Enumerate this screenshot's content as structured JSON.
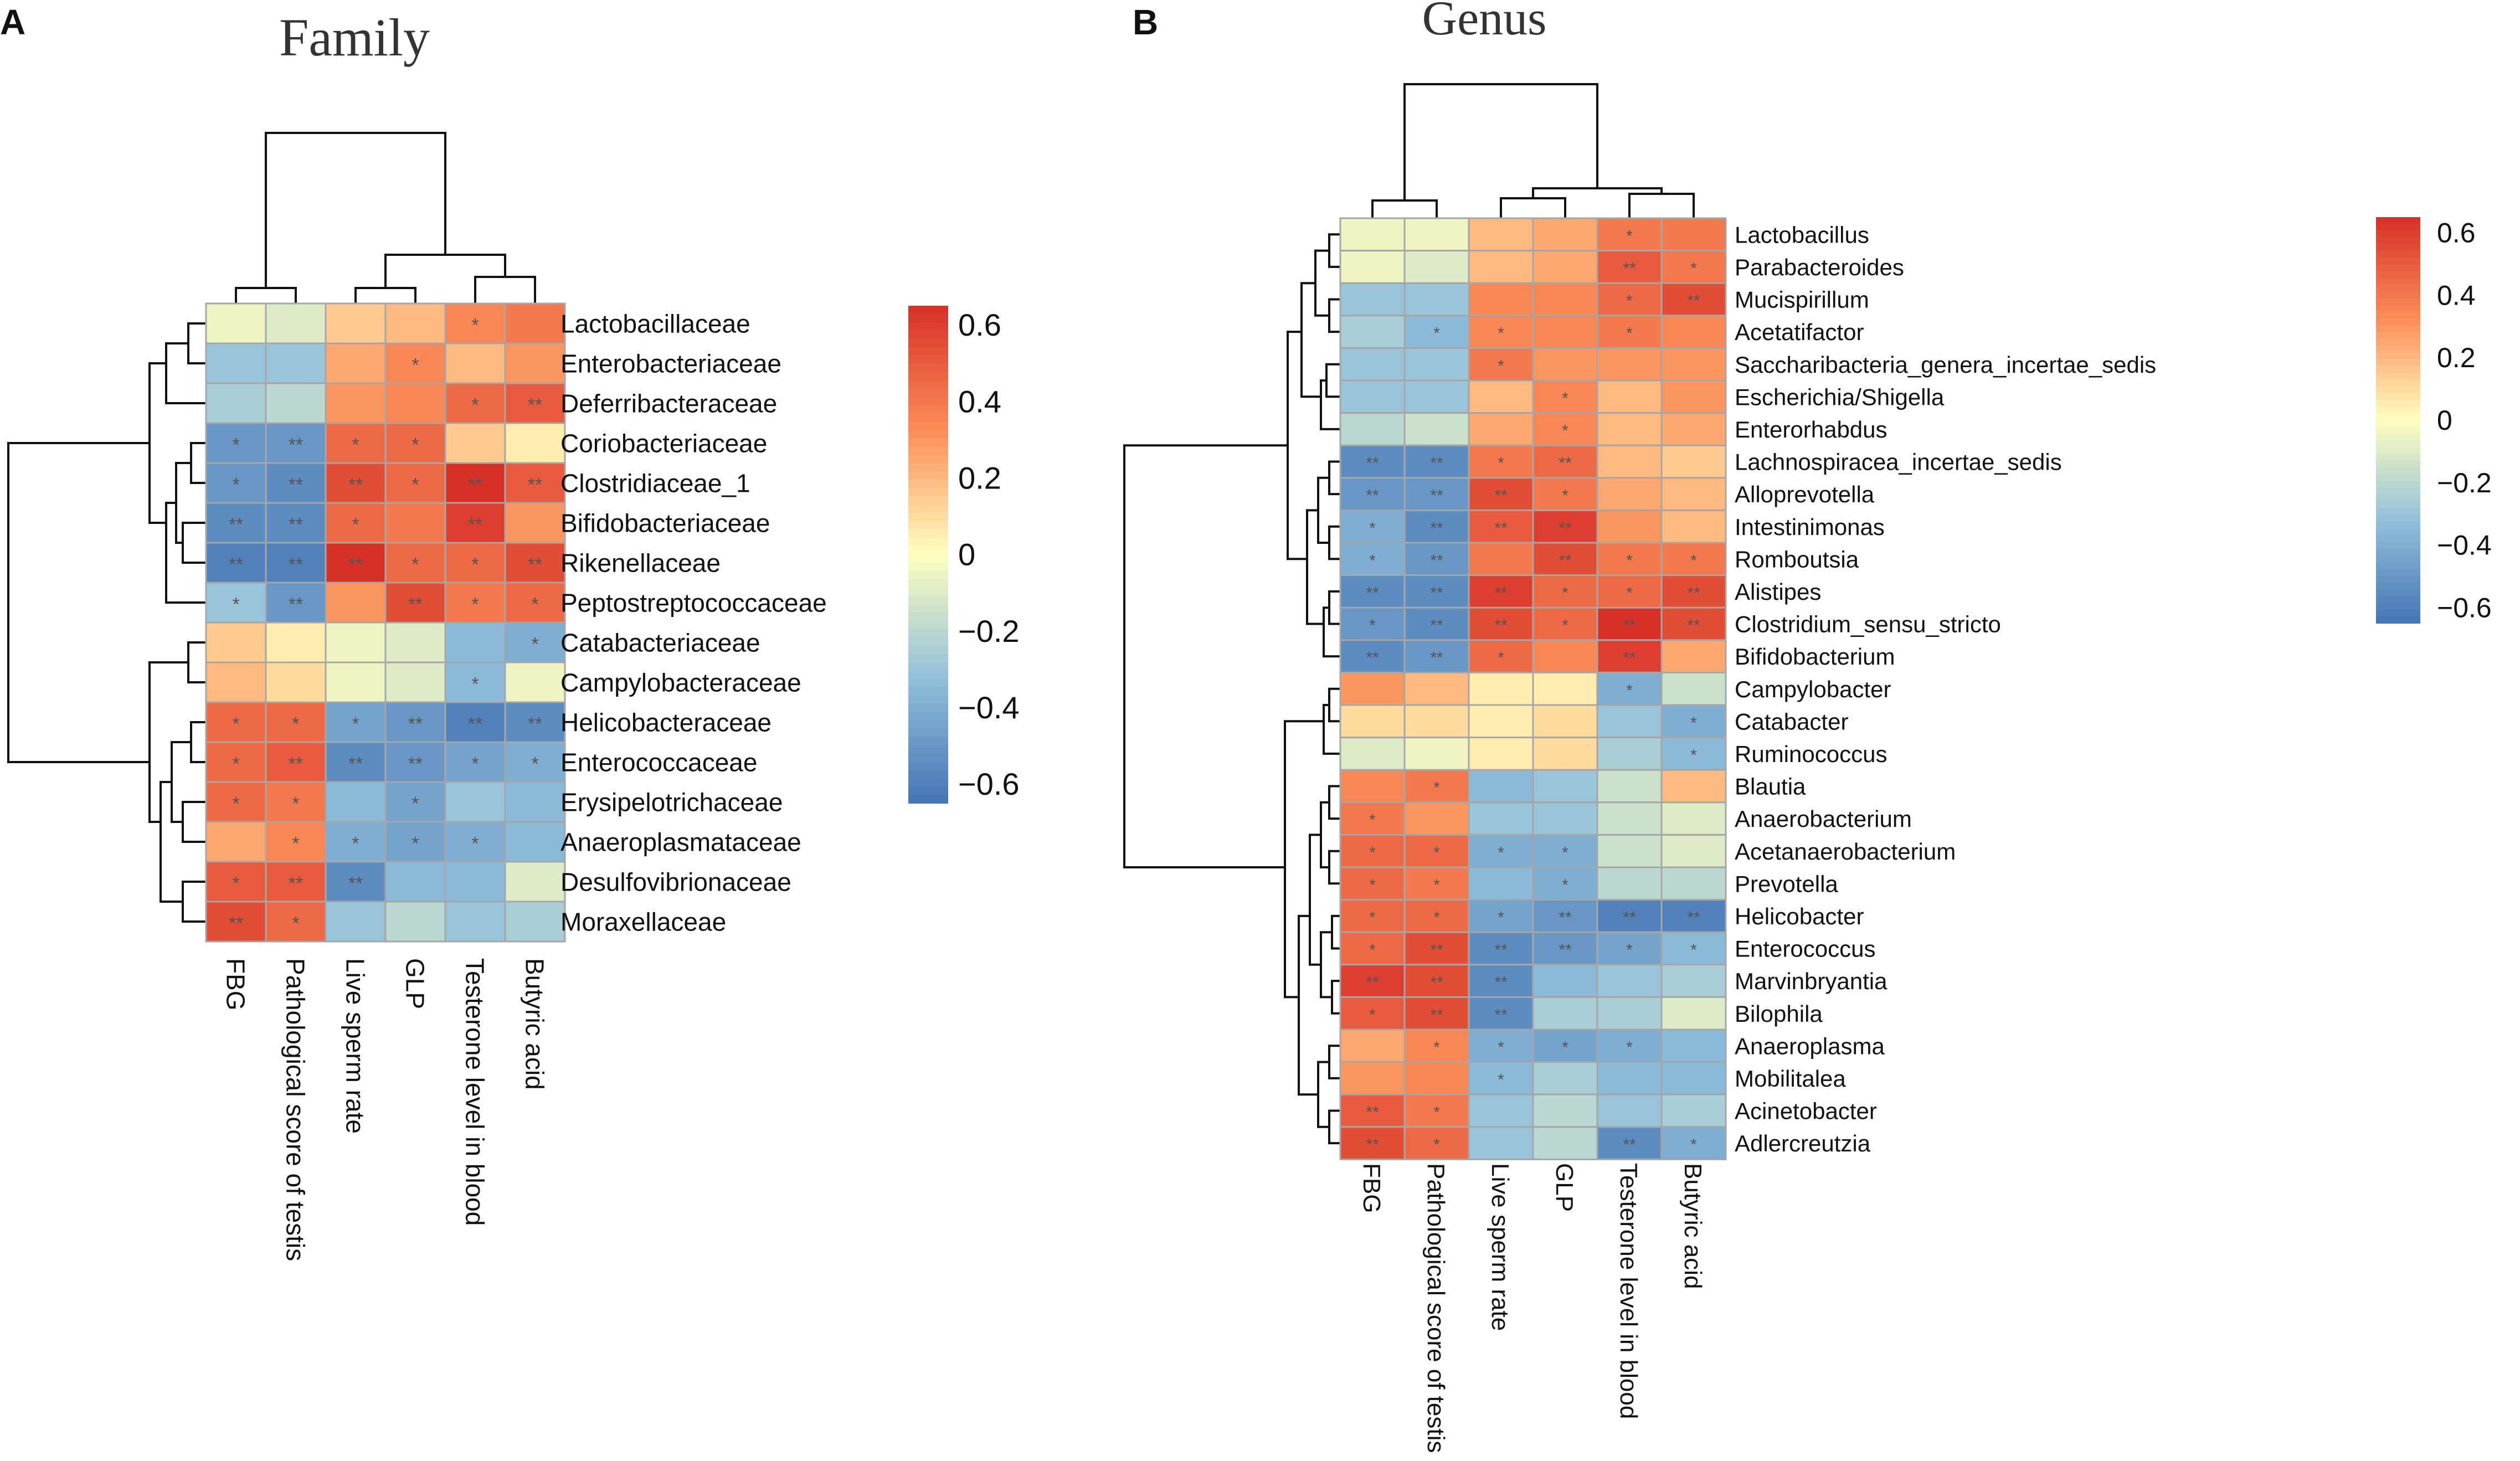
{
  "figure": {
    "panel_a_label": "A",
    "panel_b_label": "B"
  },
  "palette": {
    "low": "#4575b4",
    "mid_low": "#91bfdb",
    "mid": "#ffffbf",
    "mid_high": "#fc8d59",
    "high": "#d73027"
  },
  "chart_data": [
    {
      "type": "heatmap",
      "panel": "A",
      "title": "Family",
      "columns": [
        "FBG",
        "Pathological score of testis",
        "Live sperm rate",
        "GLP",
        "Testerone level in blood",
        "Butyric acid"
      ],
      "rows": [
        "Lactobacillaceae",
        "Enterobacteriaceae",
        "Deferribacteraceae",
        "Coriobacteriaceae",
        "Clostridiaceae_1",
        "Bifidobacteriaceae",
        "Rikenellaceae",
        "Peptostreptococcaceae",
        "Catabacteriaceae",
        "Campylobacteraceae",
        "Helicobacteraceae",
        "Enterococcaceae",
        "Erysipelotrichaceae",
        "Anaeroplasmataceae",
        "Desulfovibrionaceae",
        "Moraxellaceae"
      ],
      "values": [
        [
          -0.05,
          -0.1,
          0.15,
          0.2,
          0.35,
          0.4
        ],
        [
          -0.3,
          -0.3,
          0.25,
          0.35,
          0.2,
          0.3
        ],
        [
          -0.25,
          -0.2,
          0.3,
          0.35,
          0.45,
          0.5
        ],
        [
          -0.5,
          -0.5,
          0.45,
          0.45,
          0.15,
          0.05
        ],
        [
          -0.5,
          -0.55,
          0.55,
          0.45,
          0.65,
          0.5
        ],
        [
          -0.55,
          -0.55,
          0.45,
          0.4,
          0.6,
          0.3
        ],
        [
          -0.6,
          -0.6,
          0.65,
          0.45,
          0.45,
          0.55
        ],
        [
          -0.3,
          -0.5,
          0.3,
          0.55,
          0.4,
          0.45
        ],
        [
          0.15,
          0.05,
          -0.05,
          -0.1,
          -0.35,
          -0.4
        ],
        [
          0.2,
          0.1,
          -0.05,
          -0.1,
          -0.35,
          -0.05
        ],
        [
          0.45,
          0.45,
          -0.45,
          -0.5,
          -0.6,
          -0.55
        ],
        [
          0.45,
          0.5,
          -0.55,
          -0.5,
          -0.45,
          -0.4
        ],
        [
          0.45,
          0.4,
          -0.35,
          -0.45,
          -0.3,
          -0.35
        ],
        [
          0.25,
          0.35,
          -0.4,
          -0.45,
          -0.4,
          -0.35
        ],
        [
          0.5,
          0.5,
          -0.55,
          -0.35,
          -0.35,
          -0.1
        ],
        [
          0.55,
          0.45,
          -0.3,
          -0.2,
          -0.3,
          -0.25
        ]
      ],
      "significance": [
        [
          "",
          "",
          "",
          "",
          "*",
          ""
        ],
        [
          "",
          "",
          "",
          "*",
          "",
          ""
        ],
        [
          "",
          "",
          "",
          "",
          "*",
          "**"
        ],
        [
          "*",
          "**",
          "*",
          "*",
          "",
          ""
        ],
        [
          "*",
          "**",
          "**",
          "*",
          "**",
          "**"
        ],
        [
          "**",
          "**",
          "*",
          "",
          "**",
          ""
        ],
        [
          "**",
          "**",
          "**",
          "*",
          "*",
          "**"
        ],
        [
          "*",
          "**",
          "",
          "**",
          "*",
          "*"
        ],
        [
          "",
          "",
          "",
          "",
          "",
          "*"
        ],
        [
          "",
          "",
          "",
          "",
          "*",
          ""
        ],
        [
          "*",
          "*",
          "*",
          "**",
          "**",
          "**"
        ],
        [
          "*",
          "**",
          "**",
          "**",
          "*",
          "*"
        ],
        [
          "*",
          "*",
          "",
          "*",
          "",
          ""
        ],
        [
          "",
          "*",
          "*",
          "*",
          "*",
          ""
        ],
        [
          "*",
          "**",
          "**",
          "",
          "",
          ""
        ],
        [
          "**",
          "*",
          "",
          "",
          "",
          ""
        ]
      ],
      "legend_ticks": [
        "0.6",
        "0.4",
        "0.2",
        "0",
        "−0.2",
        "−0.4",
        "−0.6"
      ],
      "legend_range": [
        -0.65,
        0.65
      ],
      "legend_tick_values": [
        0.6,
        0.4,
        0.2,
        0,
        -0.2,
        -0.4,
        -0.6
      ]
    },
    {
      "type": "heatmap",
      "panel": "B",
      "title": "Genus",
      "columns": [
        "FBG",
        "Pathological score of testis",
        "Live sperm rate",
        "GLP",
        "Testerone level in blood",
        "Butyric acid"
      ],
      "rows": [
        "Lactobacillus",
        "Parabacteroides",
        "Mucispirillum",
        "Acetatifactor",
        "Saccharibacteria_genera_incertae_sedis",
        "Escherichia/Shigella",
        "Enterorhabdus",
        "Lachnospiracea_incertae_sedis",
        "Alloprevotella",
        "Intestinimonas",
        "Romboutsia",
        "Alistipes",
        "Clostridium_sensu_stricto",
        "Bifidobacterium",
        "Campylobacter",
        "Catabacter",
        "Ruminococcus",
        "Blautia",
        "Anaerobacterium",
        "Acetanaerobacterium",
        "Prevotella",
        "Helicobacter",
        "Enterococcus",
        "Marvinbryantia",
        "Bilophila",
        "Anaeroplasma",
        "Mobilitalea",
        "Acinetobacter",
        "Adlercreutzia"
      ],
      "values": [
        [
          -0.05,
          -0.05,
          0.2,
          0.25,
          0.4,
          0.4
        ],
        [
          -0.05,
          -0.1,
          0.2,
          0.25,
          0.5,
          0.4
        ],
        [
          -0.3,
          -0.3,
          0.35,
          0.35,
          0.45,
          0.55
        ],
        [
          -0.25,
          -0.35,
          0.35,
          0.35,
          0.4,
          0.35
        ],
        [
          -0.3,
          -0.3,
          0.4,
          0.3,
          0.3,
          0.3
        ],
        [
          -0.3,
          -0.3,
          0.2,
          0.35,
          0.2,
          0.3
        ],
        [
          -0.2,
          -0.15,
          0.25,
          0.35,
          0.2,
          0.25
        ],
        [
          -0.55,
          -0.55,
          0.4,
          0.45,
          0.2,
          0.15
        ],
        [
          -0.5,
          -0.5,
          0.55,
          0.4,
          0.25,
          0.2
        ],
        [
          -0.4,
          -0.55,
          0.5,
          0.6,
          0.3,
          0.2
        ],
        [
          -0.4,
          -0.5,
          0.4,
          0.55,
          0.4,
          0.4
        ],
        [
          -0.55,
          -0.55,
          0.6,
          0.45,
          0.45,
          0.55
        ],
        [
          -0.5,
          -0.55,
          0.55,
          0.45,
          0.65,
          0.55
        ],
        [
          -0.55,
          -0.5,
          0.45,
          0.35,
          0.6,
          0.25
        ],
        [
          0.3,
          0.2,
          0.05,
          0.05,
          -0.4,
          -0.15
        ],
        [
          0.1,
          0.1,
          0.05,
          0.1,
          -0.3,
          -0.4
        ],
        [
          -0.1,
          -0.05,
          0.05,
          0.1,
          -0.25,
          -0.35
        ],
        [
          0.35,
          0.4,
          -0.35,
          -0.3,
          -0.15,
          0.2
        ],
        [
          0.4,
          0.3,
          -0.3,
          -0.3,
          -0.15,
          -0.1
        ],
        [
          0.45,
          0.45,
          -0.4,
          -0.4,
          -0.15,
          -0.1
        ],
        [
          0.45,
          0.4,
          -0.35,
          -0.4,
          -0.2,
          -0.2
        ],
        [
          0.45,
          0.45,
          -0.45,
          -0.5,
          -0.6,
          -0.6
        ],
        [
          0.45,
          0.55,
          -0.55,
          -0.5,
          -0.45,
          -0.35
        ],
        [
          0.6,
          0.55,
          -0.55,
          -0.35,
          -0.3,
          -0.25
        ],
        [
          0.5,
          0.55,
          -0.55,
          -0.25,
          -0.25,
          -0.1
        ],
        [
          0.25,
          0.35,
          -0.4,
          -0.45,
          -0.4,
          -0.35
        ],
        [
          0.3,
          0.35,
          -0.35,
          -0.25,
          -0.35,
          -0.35
        ],
        [
          0.5,
          0.4,
          -0.3,
          -0.2,
          -0.3,
          -0.25
        ],
        [
          0.55,
          0.45,
          -0.3,
          -0.2,
          -0.55,
          -0.4
        ]
      ],
      "significance": [
        [
          "",
          "",
          "",
          "",
          "*",
          ""
        ],
        [
          "",
          "",
          "",
          "",
          "**",
          "*"
        ],
        [
          "",
          "",
          "",
          "",
          "*",
          "**"
        ],
        [
          "",
          "*",
          "*",
          "",
          "*",
          ""
        ],
        [
          "",
          "",
          "*",
          "",
          "",
          ""
        ],
        [
          "",
          "",
          "",
          "*",
          "",
          ""
        ],
        [
          "",
          "",
          "",
          "*",
          "",
          ""
        ],
        [
          "**",
          "**",
          "*",
          "**",
          "",
          ""
        ],
        [
          "**",
          "**",
          "**",
          "*",
          "",
          ""
        ],
        [
          "*",
          "**",
          "**",
          "**",
          "",
          ""
        ],
        [
          "*",
          "**",
          "",
          "**",
          "*",
          "*"
        ],
        [
          "**",
          "**",
          "**",
          "*",
          "*",
          "**"
        ],
        [
          "*",
          "**",
          "**",
          "*",
          "**",
          "**"
        ],
        [
          "**",
          "**",
          "*",
          "",
          "**",
          ""
        ],
        [
          "",
          "",
          "",
          "",
          "*",
          ""
        ],
        [
          "",
          "",
          "",
          "",
          "",
          "*"
        ],
        [
          "",
          "",
          "",
          "",
          "",
          "*"
        ],
        [
          "",
          "*",
          "",
          "",
          "",
          ""
        ],
        [
          "*",
          "",
          "",
          "",
          "",
          ""
        ],
        [
          "*",
          "*",
          "*",
          "*",
          "",
          ""
        ],
        [
          "*",
          "*",
          "",
          "*",
          "",
          ""
        ],
        [
          "*",
          "*",
          "*",
          "**",
          "**",
          "**"
        ],
        [
          "*",
          "**",
          "**",
          "**",
          "*",
          "*"
        ],
        [
          "**",
          "**",
          "**",
          "",
          "",
          ""
        ],
        [
          "*",
          "**",
          "**",
          "",
          "",
          ""
        ],
        [
          "",
          "*",
          "*",
          "*",
          "*",
          ""
        ],
        [
          "",
          "",
          "*",
          "",
          "",
          ""
        ],
        [
          "**",
          "*",
          "",
          "",
          "",
          ""
        ],
        [
          "**",
          "*",
          "",
          "",
          "**",
          "*"
        ]
      ],
      "legend_ticks": [
        "0.6",
        "0.4",
        "0.2",
        "0",
        "−0.2",
        "−0.4",
        "−0.6"
      ],
      "legend_range": [
        -0.65,
        0.65
      ],
      "legend_tick_values": [
        0.6,
        0.4,
        0.2,
        0,
        -0.2,
        -0.4,
        -0.6
      ]
    }
  ]
}
